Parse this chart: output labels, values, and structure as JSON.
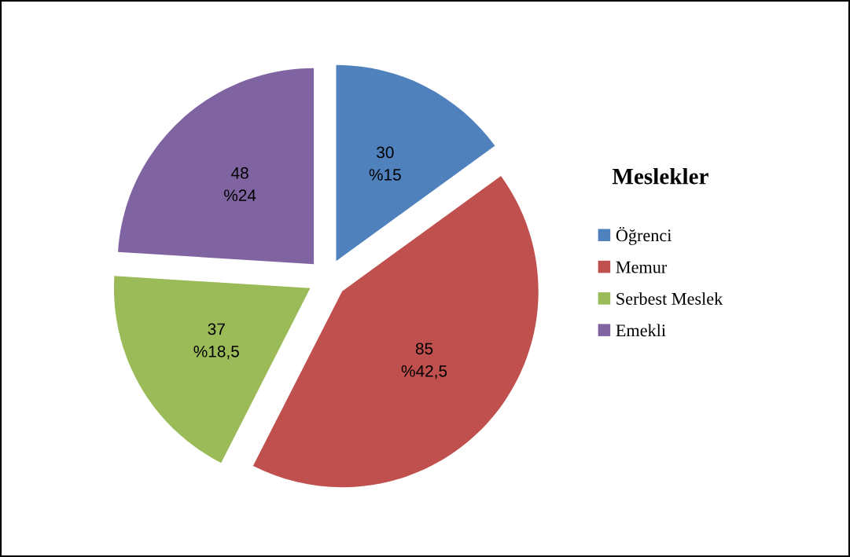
{
  "chart_data": {
    "type": "pie",
    "categories": [
      "Öğrenci",
      "Memur",
      "Serbest Meslek",
      "Emekli"
    ],
    "values": [
      30,
      85,
      37,
      48
    ],
    "colors": [
      "#4f81bd",
      "#c0504d",
      "#9bbb59",
      "#8064a2"
    ],
    "value_labels": [
      "30\n%15",
      "85\n%42,5",
      "37\n%18,5",
      "48\n%24"
    ],
    "legend_title": "Meslekler",
    "legend": "right"
  }
}
